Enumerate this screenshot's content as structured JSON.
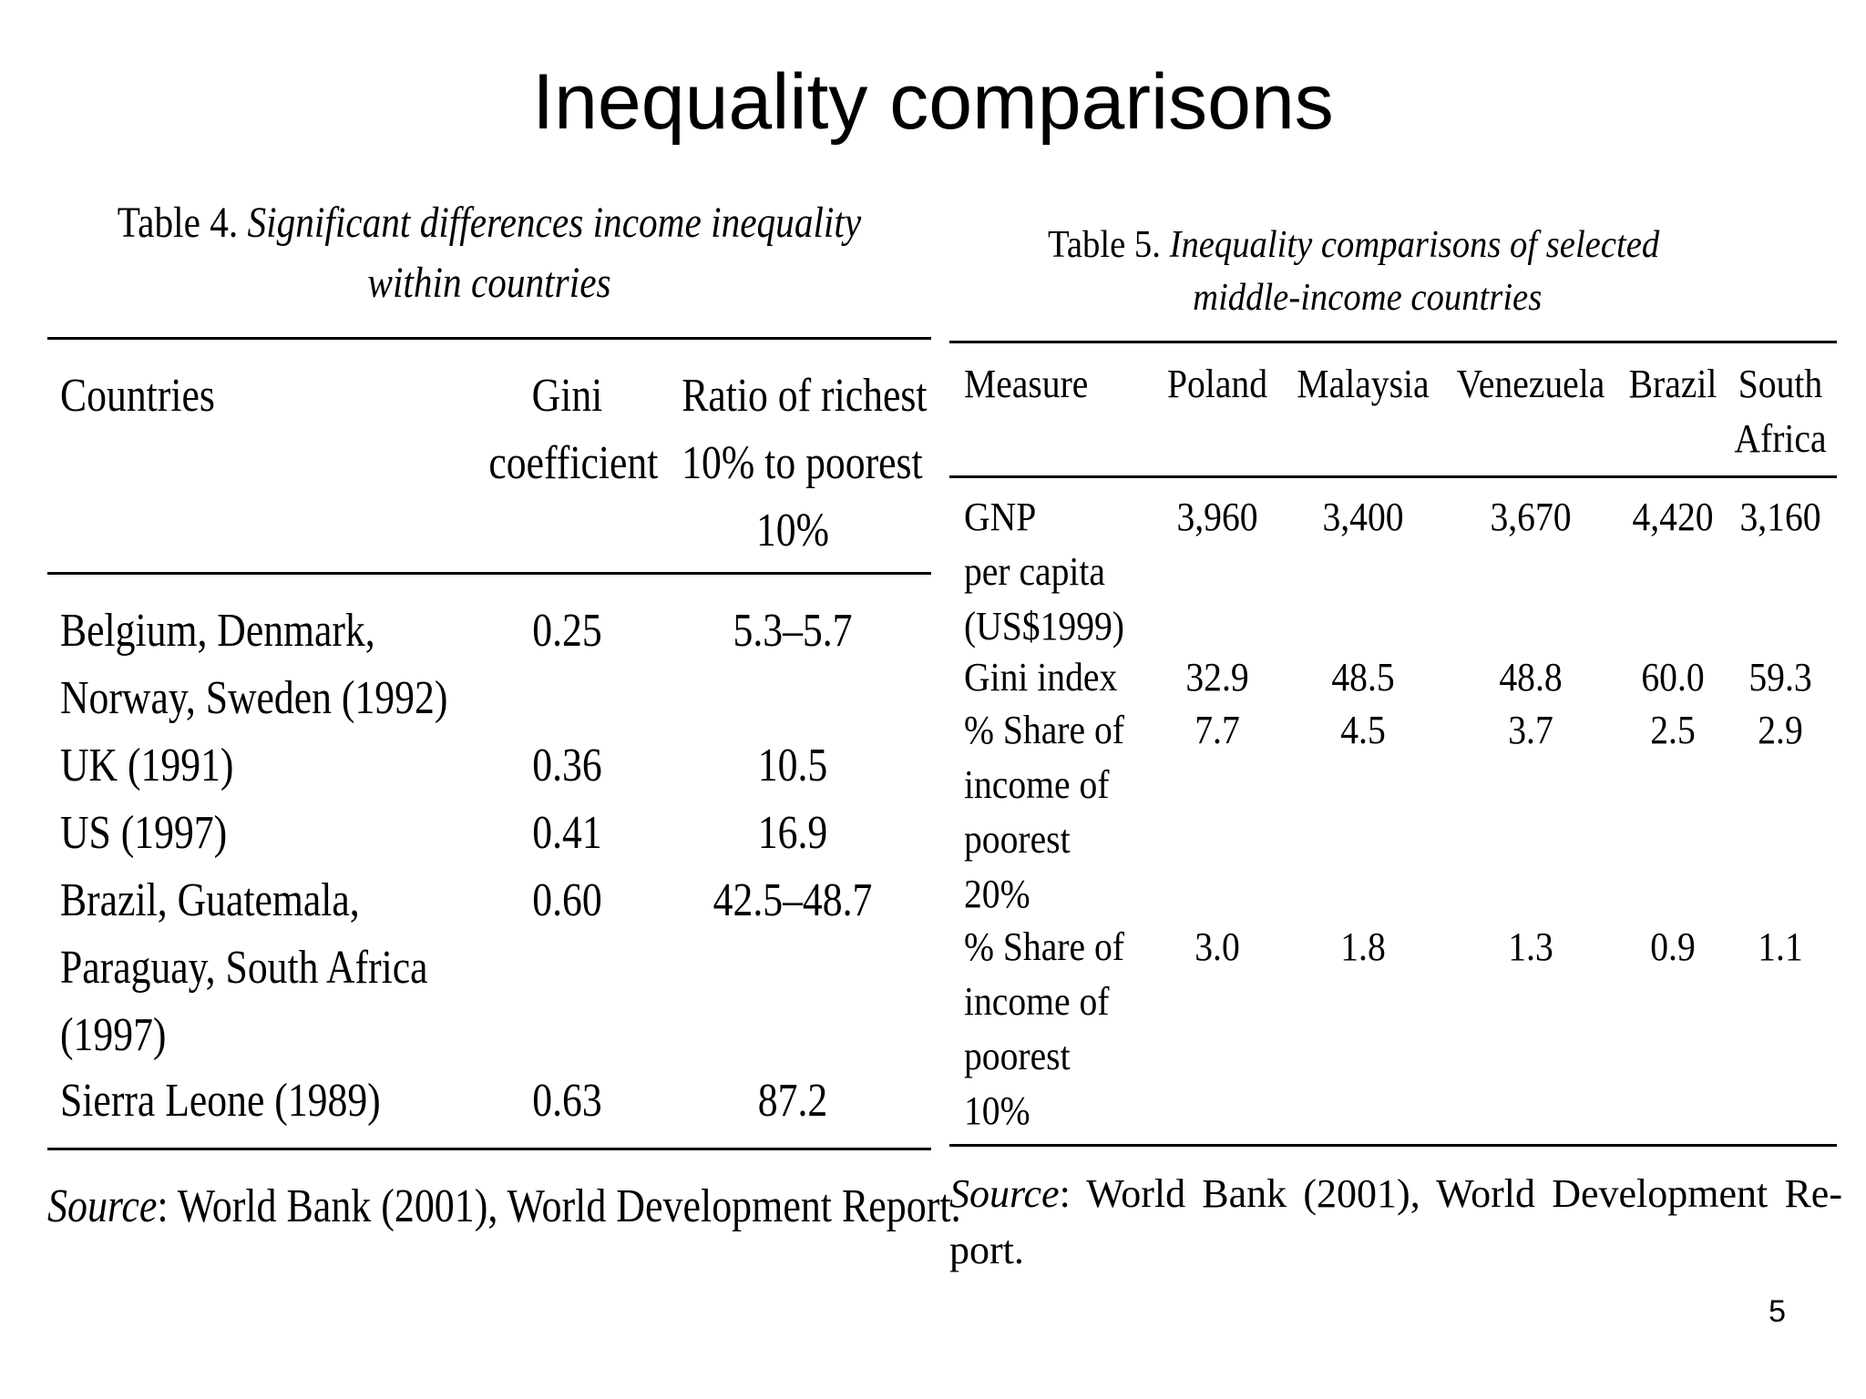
{
  "slide": {
    "title": "Inequality comparisons",
    "page_number": "5"
  },
  "table4": {
    "caption_label": "Table 4.",
    "caption_title_line1": "Significant differences income inequality",
    "caption_title_line2": "within countries",
    "headers": {
      "countries": "Countries",
      "gini_line1": "Gini",
      "gini_line2": "coefficient",
      "ratio_line1": "Ratio of richest",
      "ratio_line2": "10% to poorest",
      "ratio_line3": "10%"
    },
    "rows": [
      {
        "country_line1": "Belgium, Denmark,",
        "country_line2": "Norway, Sweden (1992)",
        "country_line3": "",
        "gini": "0.25",
        "ratio": "5.3–5.7"
      },
      {
        "country_line1": "UK (1991)",
        "country_line2": "",
        "country_line3": "",
        "gini": "0.36",
        "ratio": "10.5"
      },
      {
        "country_line1": "US (1997)",
        "country_line2": "",
        "country_line3": "",
        "gini": "0.41",
        "ratio": "16.9"
      },
      {
        "country_line1": "Brazil, Guatemala,",
        "country_line2": "Paraguay, South Africa",
        "country_line3": "(1997)",
        "gini": "0.60",
        "ratio": "42.5–48.7"
      },
      {
        "country_line1": "Sierra Leone (1989)",
        "country_line2": "",
        "country_line3": "",
        "gini": "0.63",
        "ratio": "87.2"
      }
    ],
    "source_label": "Source",
    "source_text": ": World Bank (2001), World Development Report."
  },
  "table5": {
    "caption_label": "Table 5.",
    "caption_title_line1": "Inequality comparisons of selected",
    "caption_title_line2": "middle-income countries",
    "headers": {
      "measure": "Measure",
      "poland": "Poland",
      "malaysia": "Malaysia",
      "venezuela": "Venezuela",
      "brazil": "Brazil",
      "south_africa_line1": "South",
      "south_africa_line2": "Africa"
    },
    "rows": [
      {
        "measure_lines": [
          "GNP",
          "per capita",
          "(US$1999)"
        ],
        "poland": "3,960",
        "malaysia": "3,400",
        "venezuela": "3,670",
        "brazil": "4,420",
        "south_africa": "3,160"
      },
      {
        "measure_lines": [
          "Gini index"
        ],
        "poland": "32.9",
        "malaysia": "48.5",
        "venezuela": "48.8",
        "brazil": "60.0",
        "south_africa": "59.3"
      },
      {
        "measure_lines": [
          "% Share of",
          "income of",
          "poorest",
          "20%"
        ],
        "poland": "7.7",
        "malaysia": "4.5",
        "venezuela": "3.7",
        "brazil": "2.5",
        "south_africa": "2.9"
      },
      {
        "measure_lines": [
          "% Share of",
          "income of",
          "poorest",
          "10%"
        ],
        "poland": "3.0",
        "malaysia": "1.8",
        "venezuela": "1.3",
        "brazil": "0.9",
        "south_africa": "1.1"
      }
    ],
    "source_label": "Source",
    "source_line1": ": World Bank (2001), World Development Re-",
    "source_line2": "port."
  }
}
